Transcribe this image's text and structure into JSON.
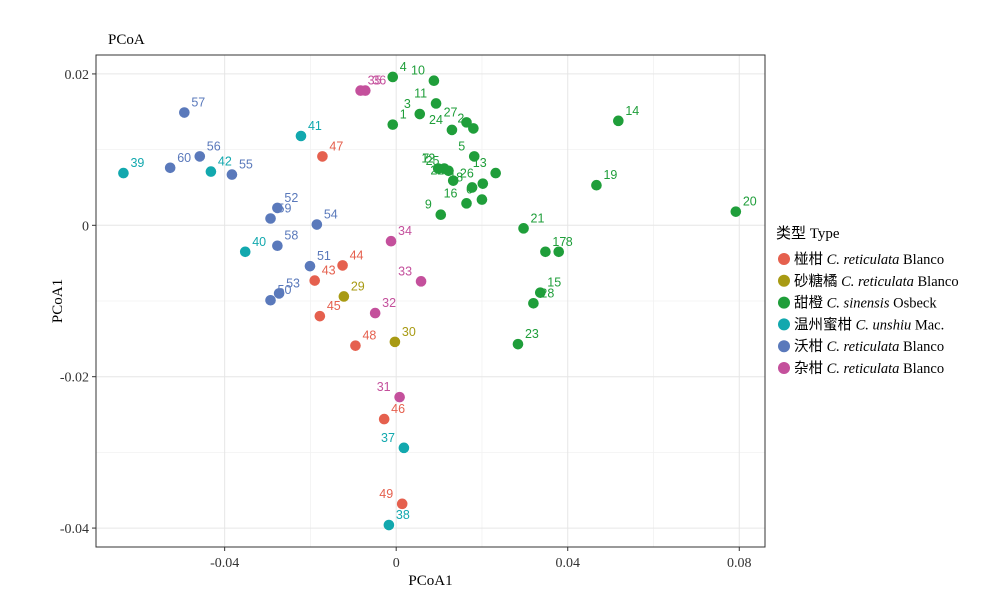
{
  "chart_data": {
    "type": "scatter",
    "title": "PCoA",
    "xlabel": "PCoA1",
    "ylabel": "PCoA1",
    "xlim": [
      -0.07,
      0.086
    ],
    "ylim": [
      -0.0425,
      0.0225
    ],
    "xticks": [
      -0.04,
      0,
      0.04,
      0.08
    ],
    "xtick_labels": [
      "-0.04",
      "0",
      "0.04",
      "0.08"
    ],
    "yticks": [
      0.02,
      0,
      -0.02,
      -0.04
    ],
    "ytick_labels": [
      "0.02",
      "0",
      "-0.02",
      "-0.04"
    ],
    "grid": true,
    "legend_position": "right",
    "legend_title": "类型 Type",
    "series": [
      {
        "name": "椪柑 C. reticulata Blanco",
        "legend_cn": "椪柑",
        "legend_species": "C. reticulata",
        "legend_author": "Blanco",
        "color": "#E5604E",
        "points": [
          {
            "label": "43",
            "x": -0.019,
            "y": -0.0073
          },
          {
            "label": "44",
            "x": -0.0125,
            "y": -0.0053
          },
          {
            "label": "45",
            "x": -0.0178,
            "y": -0.012
          },
          {
            "label": "46",
            "x": -0.0028,
            "y": -0.0256
          },
          {
            "label": "47",
            "x": -0.0172,
            "y": 0.0091
          },
          {
            "label": "48",
            "x": -0.0095,
            "y": -0.0159
          },
          {
            "label": "49",
            "x": 0.0014,
            "y": -0.0368
          }
        ]
      },
      {
        "name": "砂糖橘 C. reticulata Blanco",
        "legend_cn": "砂糖橘",
        "legend_species": "C. reticulata",
        "legend_author": "Blanco",
        "color": "#A89A13",
        "points": [
          {
            "label": "29",
            "x": -0.0122,
            "y": -0.0094
          },
          {
            "label": "30",
            "x": -0.0003,
            "y": -0.0154
          }
        ]
      },
      {
        "name": "甜橙 C. sinensis Osbeck",
        "legend_cn": "甜橙",
        "legend_species": "C. sinensis",
        "legend_author": "Osbeck",
        "color": "#1F9E3A",
        "points": [
          {
            "label": "1",
            "x": -0.0008,
            "y": 0.0133
          },
          {
            "label": "2",
            "x": 0.018,
            "y": 0.0128
          },
          {
            "label": "3",
            "x": 0.0055,
            "y": 0.0147
          },
          {
            "label": "4",
            "x": -0.0008,
            "y": 0.0196
          },
          {
            "label": "5",
            "x": 0.0182,
            "y": 0.0091
          },
          {
            "label": "6",
            "x": 0.02,
            "y": 0.0034
          },
          {
            "label": "7",
            "x": 0.0098,
            "y": 0.0075
          },
          {
            "label": "8",
            "x": 0.0379,
            "y": -0.0035
          },
          {
            "label": "9",
            "x": 0.0104,
            "y": 0.0014
          },
          {
            "label": "10",
            "x": 0.0088,
            "y": 0.0191
          },
          {
            "label": "11",
            "x": 0.0093,
            "y": 0.0161
          },
          {
            "label": "12",
            "x": 0.0112,
            "y": 0.0075
          },
          {
            "label": "13",
            "x": 0.0232,
            "y": 0.0069
          },
          {
            "label": "14",
            "x": 0.0518,
            "y": 0.0138
          },
          {
            "label": "15",
            "x": 0.0336,
            "y": -0.0089
          },
          {
            "label": "16",
            "x": 0.0164,
            "y": 0.0029
          },
          {
            "label": "17",
            "x": 0.0348,
            "y": -0.0035
          },
          {
            "label": "18",
            "x": 0.0177,
            "y": 0.005
          },
          {
            "label": "19",
            "x": 0.0467,
            "y": 0.0053
          },
          {
            "label": "20",
            "x": 0.0792,
            "y": 0.0018
          },
          {
            "label": "21",
            "x": 0.0297,
            "y": -0.0004
          },
          {
            "label": "22",
            "x": 0.0133,
            "y": 0.0059
          },
          {
            "label": "23",
            "x": 0.0284,
            "y": -0.0157
          },
          {
            "label": "24",
            "x": 0.013,
            "y": 0.0126
          },
          {
            "label": "25",
            "x": 0.0122,
            "y": 0.0072
          },
          {
            "label": "26",
            "x": 0.0202,
            "y": 0.0055
          },
          {
            "label": "27",
            "x": 0.0164,
            "y": 0.0136
          },
          {
            "label": "28",
            "x": 0.032,
            "y": -0.0103
          }
        ]
      },
      {
        "name": "温州蜜柑 C. unshiu Mac.",
        "legend_cn": "温州蜜柑",
        "legend_species": "C. unshiu",
        "legend_author": "Mac.",
        "color": "#12A8AE",
        "points": [
          {
            "label": "37",
            "x": 0.0018,
            "y": -0.0294
          },
          {
            "label": "38",
            "x": -0.0017,
            "y": -0.0396
          },
          {
            "label": "39",
            "x": -0.0636,
            "y": 0.0069
          },
          {
            "label": "40",
            "x": -0.0352,
            "y": -0.0035
          },
          {
            "label": "41",
            "x": -0.0222,
            "y": 0.0118
          },
          {
            "label": "42",
            "x": -0.0432,
            "y": 0.0071
          }
        ]
      },
      {
        "name": "沃柑 C. reticulata Blanco",
        "legend_cn": "沃柑",
        "legend_species": "C. reticulata",
        "legend_author": "Blanco",
        "color": "#5A79BB",
        "points": [
          {
            "label": "50",
            "x": -0.0293,
            "y": -0.0099
          },
          {
            "label": "51",
            "x": -0.0201,
            "y": -0.0054
          },
          {
            "label": "52",
            "x": -0.0277,
            "y": 0.0023
          },
          {
            "label": "53",
            "x": -0.0273,
            "y": -0.009
          },
          {
            "label": "54",
            "x": -0.0185,
            "y": 0.0001
          },
          {
            "label": "55",
            "x": -0.0383,
            "y": 0.0067
          },
          {
            "label": "56",
            "x": -0.0458,
            "y": 0.0091
          },
          {
            "label": "57",
            "x": -0.0494,
            "y": 0.0149
          },
          {
            "label": "58",
            "x": -0.0277,
            "y": -0.0027
          },
          {
            "label": "59",
            "x": -0.0293,
            "y": 0.0009
          },
          {
            "label": "60",
            "x": -0.0527,
            "y": 0.0076
          }
        ]
      },
      {
        "name": "杂柑 C. reticulata Blanco",
        "legend_cn": "杂柑",
        "legend_species": "C. reticulata",
        "legend_author": "Blanco",
        "color": "#C4509C",
        "points": [
          {
            "label": "31",
            "x": 0.0008,
            "y": -0.0227
          },
          {
            "label": "32",
            "x": -0.0049,
            "y": -0.0116
          },
          {
            "label": "33",
            "x": 0.0058,
            "y": -0.0074
          },
          {
            "label": "34",
            "x": -0.0012,
            "y": -0.0021
          },
          {
            "label": "35",
            "x": -0.0083,
            "y": 0.0178
          },
          {
            "label": "36",
            "x": -0.0072,
            "y": 0.0178
          }
        ]
      }
    ]
  }
}
